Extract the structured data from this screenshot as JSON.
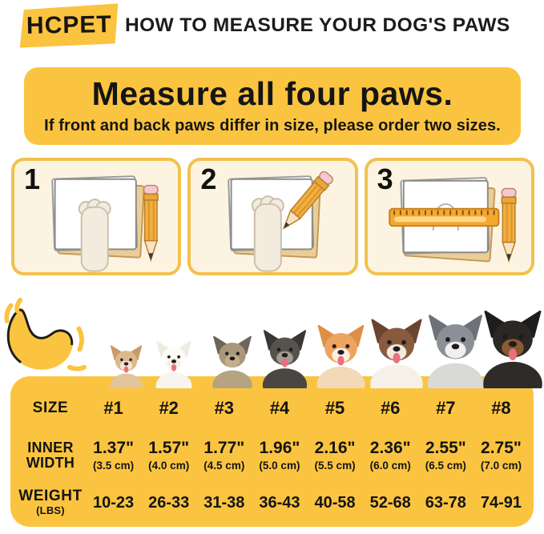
{
  "header": {
    "logo": "HCPET",
    "title": "HOW TO MEASURE YOUR DOG'S PAWS"
  },
  "banner": {
    "heading": "Measure all four paws.",
    "subheading": "If front and back paws differ in size, please order two sizes."
  },
  "steps": [
    {
      "number": "1",
      "illustration": "paw-pressed-on-paper-with-pencil"
    },
    {
      "number": "2",
      "illustration": "tracing-paw-outline-with-pencil"
    },
    {
      "number": "3",
      "illustration": "measuring-traced-outline-with-ruler"
    }
  ],
  "dogs": [
    {
      "breed": "chihuahua",
      "ear": "#C99A6A",
      "head": "#DCB88D",
      "muzzle": "#F3E6CF",
      "chest": "#E3C59B",
      "tongue": true
    },
    {
      "breed": "bichon-frise",
      "ear": "#EFEBE1",
      "head": "#FDFCF8",
      "muzzle": "#F4EFE6",
      "chest": "#F8F5EE",
      "tongue": true
    },
    {
      "breed": "yorkshire-terrier",
      "ear": "#6E655A",
      "head": "#A8977A",
      "muzzle": "#C4AE8C",
      "chest": "#B5A384",
      "tongue": false
    },
    {
      "breed": "miniature-schnauzer",
      "ear": "#3A3734",
      "head": "#57524C",
      "muzzle": "#A39C92",
      "chest": "#4A4642",
      "tongue": true
    },
    {
      "breed": "shiba-inu",
      "ear": "#DE8F47",
      "head": "#ECA45F",
      "muzzle": "#FAF0E1",
      "chest": "#F3D9B8",
      "tongue": true
    },
    {
      "breed": "australian-shepherd",
      "ear": "#6B4430",
      "head": "#8A5A3E",
      "muzzle": "#F2E8DC",
      "chest": "#F6F1E8",
      "tongue": true
    },
    {
      "breed": "husky",
      "ear": "#6E7277",
      "head": "#8C9096",
      "muzzle": "#F1F0EE",
      "chest": "#D9D9D8",
      "tongue": false
    },
    {
      "breed": "rottweiler",
      "ear": "#1F1D1C",
      "head": "#2A2725",
      "muzzle": "#8A5A33",
      "chest": "#2E2B29",
      "tongue": true
    }
  ],
  "size_chart": {
    "size_label": "SIZE",
    "sizes": [
      "#1",
      "#2",
      "#3",
      "#4",
      "#5",
      "#6",
      "#7",
      "#8"
    ],
    "inner_width_label": "INNER WIDTH",
    "inner_width_inches": [
      "1.37\"",
      "1.57\"",
      "1.77\"",
      "1.96\"",
      "2.16\"",
      "2.36\"",
      "2.55\"",
      "2.75\""
    ],
    "inner_width_cm": [
      "(3.5 cm)",
      "(4.0 cm)",
      "(4.5 cm)",
      "(5.0 cm)",
      "(5.5 cm)",
      "(6.0 cm)",
      "(6.5 cm)",
      "(7.0 cm)"
    ],
    "weight_label": "WEIGHT",
    "weight_sublabel": "(LBS)",
    "weights": [
      "10-23",
      "26-33",
      "31-38",
      "36-43",
      "40-58",
      "52-68",
      "63-78",
      "74-91"
    ]
  },
  "colors": {
    "brand_yellow": "#FBC440",
    "card_cream": "#FCF4E0",
    "card_border": "#F2C14E",
    "text_black": "#151515",
    "pencil_orange": "#F3AE3F",
    "ruler_orange": "#F5A730"
  },
  "icons": [
    "paw-doodle-icon",
    "pencil-icon",
    "ruler-icon",
    "paper-stack-icon"
  ]
}
